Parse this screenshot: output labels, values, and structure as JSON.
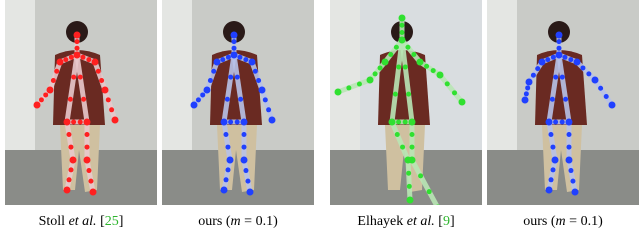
{
  "panels": [
    {
      "caption": [
        "Stoll ",
        "et al.",
        " [",
        "25",
        "]"
      ]
    },
    {
      "caption": [
        "ours (",
        "m",
        " = 0.1)"
      ]
    },
    {
      "caption": [
        "Elhayek ",
        "et al.",
        " [",
        "9",
        "]"
      ]
    },
    {
      "caption": [
        "ours (",
        "m",
        " = 0.1)"
      ]
    }
  ]
}
